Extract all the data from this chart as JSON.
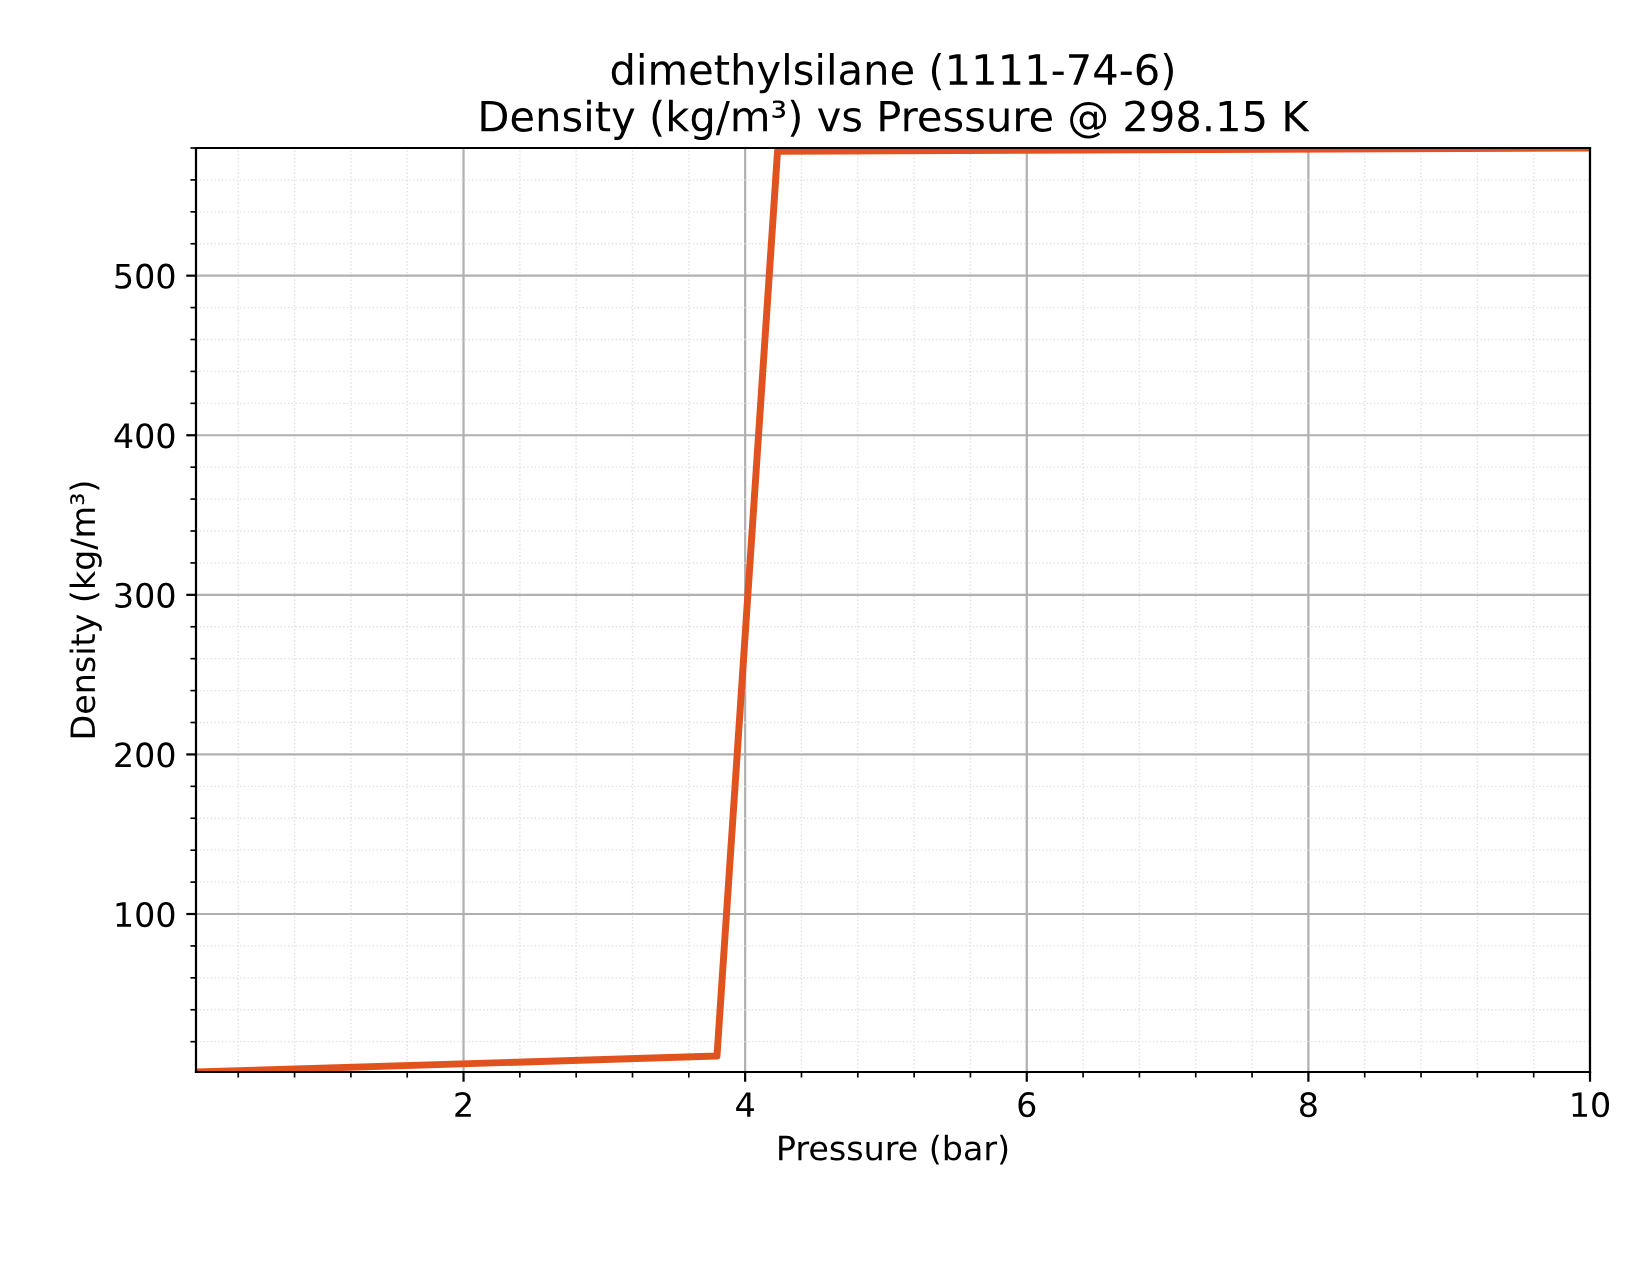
{
  "chart_data": {
    "type": "line",
    "title": "dimethylsilane (1111-74-6)\nDensity (kg/m³) vs Pressure @ 298.15 K",
    "xlabel": "Pressure (bar)",
    "ylabel": "Density (kg/m³)",
    "x": [
      0.1,
      3.8,
      4.23,
      10
    ],
    "series": [
      {
        "color": "#e0531f",
        "values": [
          1,
          11,
          578,
          580
        ]
      }
    ],
    "xlim": [
      0.1,
      10
    ],
    "ylim": [
      1,
      580
    ],
    "xticks": [
      2,
      4,
      6,
      8,
      10
    ],
    "yticks": [
      100,
      200,
      300,
      400,
      500
    ],
    "grid": true,
    "marker": "none",
    "line_style": "solid"
  }
}
